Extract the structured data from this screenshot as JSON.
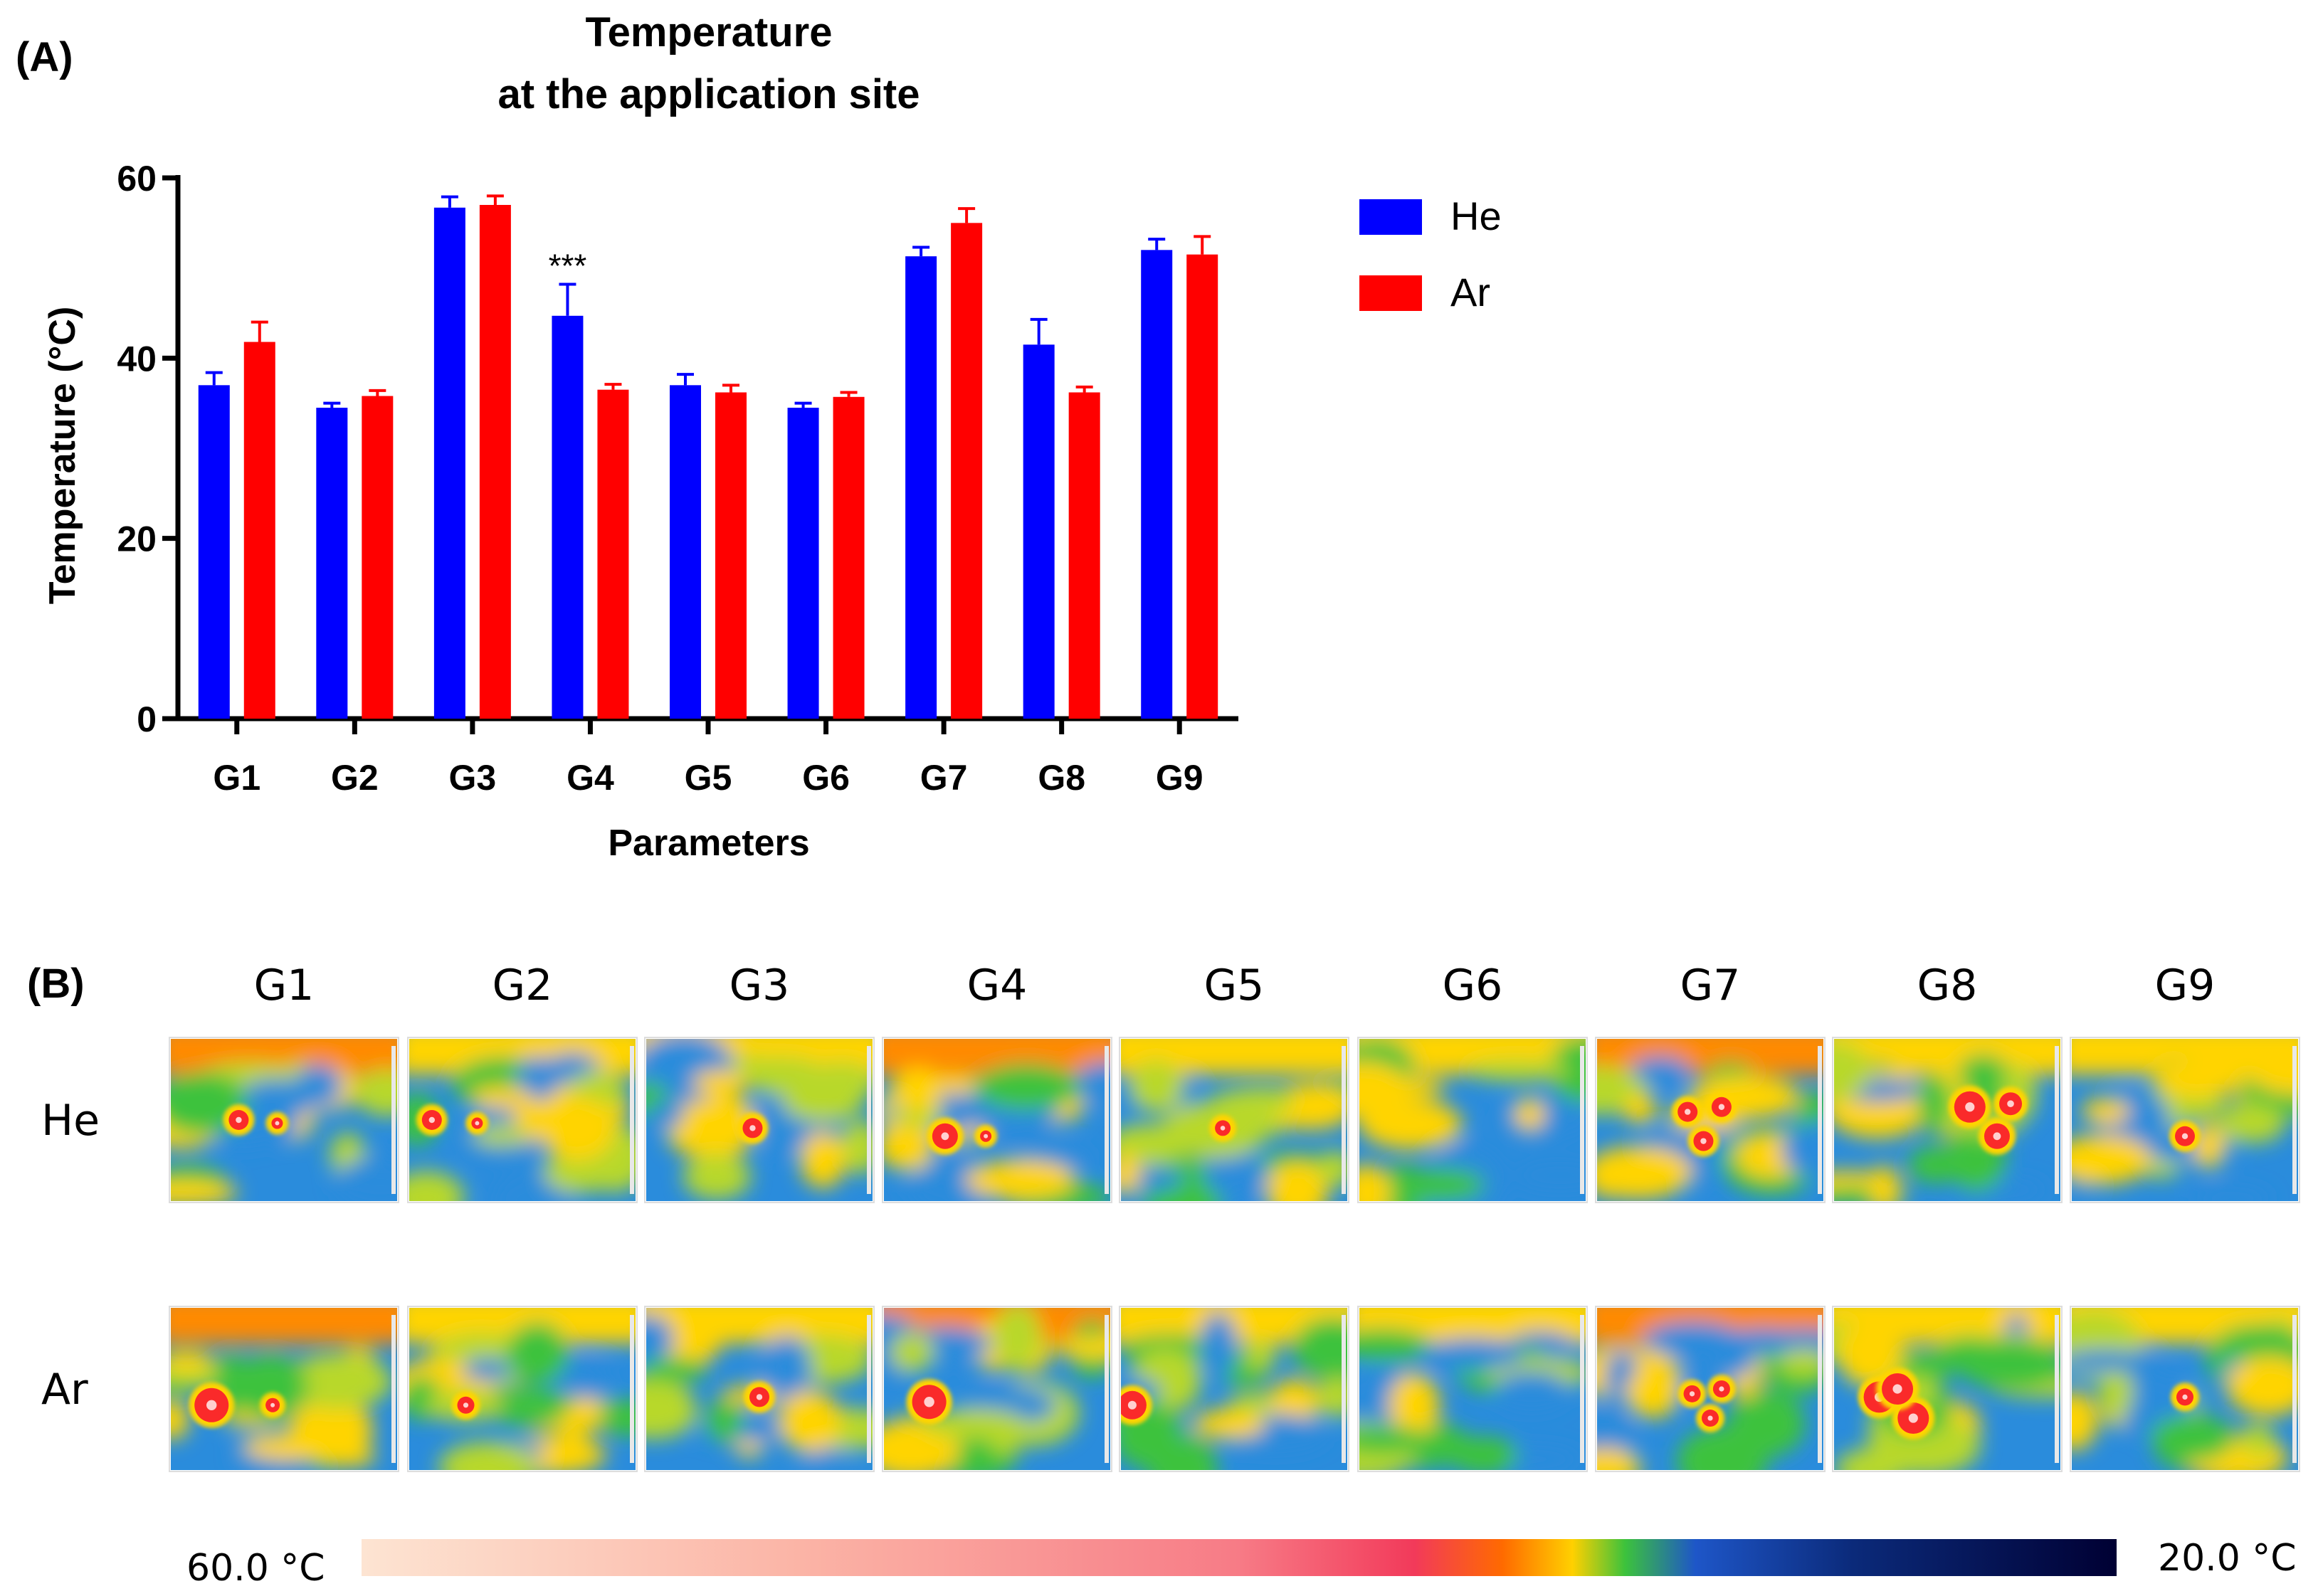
{
  "panel_a": {
    "label": "(A)",
    "chart_data": {
      "type": "bar",
      "title": "Temperature at the application site",
      "title_lines": [
        "Temperature",
        "at the application site"
      ],
      "xlabel": "Parameters",
      "ylabel": "Temperature (°C)",
      "ylim": [
        0,
        60
      ],
      "yticks": [
        0,
        20,
        40,
        60
      ],
      "categories": [
        "G1",
        "G2",
        "G3",
        "G4",
        "G5",
        "G6",
        "G7",
        "G8",
        "G9"
      ],
      "series": [
        {
          "name": "He",
          "color": "#0000ff",
          "values": [
            37.0,
            34.5,
            56.7,
            44.7,
            37.0,
            34.5,
            51.3,
            41.5,
            52.0
          ],
          "errors": [
            1.4,
            0.5,
            1.2,
            3.5,
            1.2,
            0.5,
            1.0,
            2.8,
            1.2
          ]
        },
        {
          "name": "Ar",
          "color": "#ff0000",
          "values": [
            41.8,
            35.8,
            57.0,
            36.5,
            36.2,
            35.7,
            55.0,
            36.2,
            51.5
          ],
          "errors": [
            2.2,
            0.6,
            1.0,
            0.6,
            0.8,
            0.5,
            1.6,
            0.6,
            2.0
          ]
        }
      ],
      "annotations": [
        {
          "category": "G4",
          "text": "***"
        }
      ],
      "legend": "top-right",
      "grid": false
    }
  },
  "panel_b": {
    "label": "(B)",
    "columns": [
      "G1",
      "G2",
      "G3",
      "G4",
      "G5",
      "G6",
      "G7",
      "G8",
      "G9"
    ],
    "rows": [
      "He",
      "Ar"
    ],
    "colorbar": {
      "left_label": "60.0 °C",
      "right_label": "20.0 °C",
      "stops": [
        "#fde4d2",
        "#fbb4a6",
        "#f77b86",
        "#f23a5a",
        "#ff6a00",
        "#ffd000",
        "#3cc23c",
        "#1e56c8",
        "#0b2a7a",
        "#000033"
      ]
    },
    "thermal_colors": [
      "#fa2a2a",
      "#ff8a00",
      "#ffd400",
      "#b8d82a",
      "#3cc23c",
      "#2a8cdc",
      "#1e56c8"
    ]
  }
}
